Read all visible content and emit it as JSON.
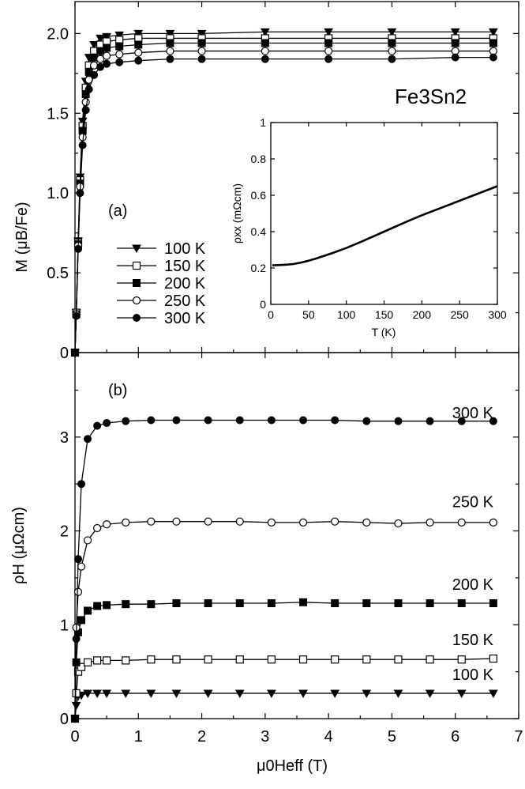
{
  "chart_data": [
    {
      "id": "a",
      "panel_label": "(a)",
      "type": "line",
      "ylabel": "M (μB/Fe)",
      "xlim": [
        0,
        7
      ],
      "ylim": [
        0,
        2.2
      ],
      "yticks": [
        "0",
        "0.5",
        "1.0",
        "1.5",
        "2.0"
      ],
      "annotation": "Fe3Sn2",
      "legend_position": "middle-left",
      "series": [
        {
          "name": "100 K",
          "marker": "triangle-down",
          "values": [
            [
              0,
              0
            ],
            [
              0.02,
              0.25
            ],
            [
              0.05,
              0.7
            ],
            [
              0.08,
              1.1
            ],
            [
              0.12,
              1.45
            ],
            [
              0.17,
              1.7
            ],
            [
              0.22,
              1.85
            ],
            [
              0.3,
              1.93
            ],
            [
              0.4,
              1.97
            ],
            [
              0.5,
              1.98
            ],
            [
              0.7,
              1.99
            ],
            [
              1.0,
              2.0
            ],
            [
              1.5,
              2.0
            ],
            [
              2.0,
              2.0
            ],
            [
              3.0,
              2.01
            ],
            [
              4.0,
              2.01
            ],
            [
              5.0,
              2.01
            ],
            [
              6.0,
              2.01
            ],
            [
              6.6,
              2.01
            ]
          ]
        },
        {
          "name": "150 K",
          "marker": "square-open",
          "values": [
            [
              0,
              0
            ],
            [
              0.02,
              0.25
            ],
            [
              0.05,
              0.69
            ],
            [
              0.08,
              1.08
            ],
            [
              0.12,
              1.42
            ],
            [
              0.17,
              1.66
            ],
            [
              0.22,
              1.8
            ],
            [
              0.3,
              1.89
            ],
            [
              0.4,
              1.93
            ],
            [
              0.5,
              1.95
            ],
            [
              0.7,
              1.96
            ],
            [
              1.0,
              1.97
            ],
            [
              1.5,
              1.97
            ],
            [
              2.0,
              1.97
            ],
            [
              3.0,
              1.97
            ],
            [
              4.0,
              1.97
            ],
            [
              5.0,
              1.97
            ],
            [
              6.0,
              1.97
            ],
            [
              6.6,
              1.97
            ]
          ]
        },
        {
          "name": "200 K",
          "marker": "square-filled",
          "values": [
            [
              0,
              0
            ],
            [
              0.02,
              0.24
            ],
            [
              0.05,
              0.68
            ],
            [
              0.08,
              1.06
            ],
            [
              0.12,
              1.39
            ],
            [
              0.17,
              1.62
            ],
            [
              0.22,
              1.76
            ],
            [
              0.3,
              1.85
            ],
            [
              0.4,
              1.89
            ],
            [
              0.5,
              1.91
            ],
            [
              0.7,
              1.92
            ],
            [
              1.0,
              1.93
            ],
            [
              1.5,
              1.94
            ],
            [
              2.0,
              1.94
            ],
            [
              3.0,
              1.94
            ],
            [
              4.0,
              1.94
            ],
            [
              5.0,
              1.94
            ],
            [
              6.0,
              1.94
            ],
            [
              6.6,
              1.94
            ]
          ]
        },
        {
          "name": "250 K",
          "marker": "circle-open",
          "values": [
            [
              0,
              0
            ],
            [
              0.02,
              0.24
            ],
            [
              0.05,
              0.67
            ],
            [
              0.08,
              1.04
            ],
            [
              0.12,
              1.35
            ],
            [
              0.17,
              1.57
            ],
            [
              0.22,
              1.71
            ],
            [
              0.3,
              1.8
            ],
            [
              0.4,
              1.84
            ],
            [
              0.5,
              1.86
            ],
            [
              0.7,
              1.87
            ],
            [
              1.0,
              1.88
            ],
            [
              1.5,
              1.89
            ],
            [
              2.0,
              1.89
            ],
            [
              3.0,
              1.89
            ],
            [
              4.0,
              1.89
            ],
            [
              5.0,
              1.89
            ],
            [
              6.0,
              1.89
            ],
            [
              6.6,
              1.89
            ]
          ]
        },
        {
          "name": "300 K",
          "marker": "circle-filled",
          "values": [
            [
              0,
              0
            ],
            [
              0.02,
              0.23
            ],
            [
              0.05,
              0.65
            ],
            [
              0.08,
              1.0
            ],
            [
              0.12,
              1.3
            ],
            [
              0.17,
              1.52
            ],
            [
              0.22,
              1.65
            ],
            [
              0.3,
              1.74
            ],
            [
              0.4,
              1.79
            ],
            [
              0.5,
              1.81
            ],
            [
              0.7,
              1.82
            ],
            [
              1.0,
              1.83
            ],
            [
              1.5,
              1.84
            ],
            [
              2.0,
              1.84
            ],
            [
              3.0,
              1.84
            ],
            [
              4.0,
              1.84
            ],
            [
              5.0,
              1.84
            ],
            [
              6.0,
              1.85
            ],
            [
              6.6,
              1.85
            ]
          ]
        }
      ],
      "inset": {
        "type": "line",
        "xlabel": "T (K)",
        "ylabel": "ρxx (mΩcm)",
        "xlim": [
          0,
          300
        ],
        "ylim": [
          0,
          1.0
        ],
        "xticks": [
          "0",
          "50",
          "100",
          "150",
          "200",
          "250",
          "300"
        ],
        "yticks": [
          "0",
          "0.2",
          "0.4",
          "0.6",
          "0.8",
          "1"
        ],
        "x": [
          2,
          10,
          20,
          30,
          40,
          50,
          60,
          80,
          100,
          120,
          150,
          180,
          200,
          250,
          300
        ],
        "y": [
          0.215,
          0.216,
          0.218,
          0.222,
          0.23,
          0.24,
          0.252,
          0.28,
          0.31,
          0.345,
          0.4,
          0.455,
          0.49,
          0.57,
          0.65
        ]
      }
    },
    {
      "id": "b",
      "panel_label": "(b)",
      "type": "line",
      "ylabel": "ρH (μΩcm)",
      "xlabel": "μ0Heff (T)",
      "xlim": [
        0,
        7
      ],
      "ylim": [
        0,
        3.9
      ],
      "xticks": [
        "0",
        "1",
        "2",
        "3",
        "4",
        "5",
        "6",
        "7"
      ],
      "yticks": [
        "0",
        "1",
        "2",
        "3"
      ],
      "series": [
        {
          "name": "100 K",
          "marker": "triangle-down",
          "values": [
            [
              0,
              0
            ],
            [
              0.02,
              0.14
            ],
            [
              0.05,
              0.24
            ],
            [
              0.1,
              0.25
            ],
            [
              0.2,
              0.27
            ],
            [
              0.35,
              0.27
            ],
            [
              0.5,
              0.27
            ],
            [
              0.8,
              0.27
            ],
            [
              1.2,
              0.27
            ],
            [
              1.6,
              0.27
            ],
            [
              2.1,
              0.27
            ],
            [
              2.6,
              0.27
            ],
            [
              3.1,
              0.27
            ],
            [
              3.6,
              0.27
            ],
            [
              4.1,
              0.27
            ],
            [
              4.6,
              0.27
            ],
            [
              5.1,
              0.27
            ],
            [
              5.6,
              0.27
            ],
            [
              6.1,
              0.27
            ],
            [
              6.6,
              0.27
            ]
          ]
        },
        {
          "name": "150 K",
          "marker": "square-open",
          "values": [
            [
              0,
              0
            ],
            [
              0.02,
              0.27
            ],
            [
              0.05,
              0.5
            ],
            [
              0.1,
              0.55
            ],
            [
              0.2,
              0.6
            ],
            [
              0.35,
              0.62
            ],
            [
              0.5,
              0.62
            ],
            [
              0.8,
              0.62
            ],
            [
              1.2,
              0.63
            ],
            [
              1.6,
              0.63
            ],
            [
              2.1,
              0.63
            ],
            [
              2.6,
              0.63
            ],
            [
              3.1,
              0.63
            ],
            [
              3.6,
              0.63
            ],
            [
              4.1,
              0.63
            ],
            [
              4.6,
              0.63
            ],
            [
              5.1,
              0.63
            ],
            [
              5.6,
              0.63
            ],
            [
              6.1,
              0.63
            ],
            [
              6.6,
              0.64
            ]
          ]
        },
        {
          "name": "200 K",
          "marker": "square-filled",
          "values": [
            [
              0,
              0
            ],
            [
              0.02,
              0.6
            ],
            [
              0.05,
              0.92
            ],
            [
              0.1,
              1.05
            ],
            [
              0.2,
              1.15
            ],
            [
              0.35,
              1.2
            ],
            [
              0.5,
              1.21
            ],
            [
              0.8,
              1.22
            ],
            [
              1.2,
              1.22
            ],
            [
              1.6,
              1.23
            ],
            [
              2.1,
              1.23
            ],
            [
              2.6,
              1.23
            ],
            [
              3.1,
              1.23
            ],
            [
              3.6,
              1.24
            ],
            [
              4.1,
              1.23
            ],
            [
              4.6,
              1.23
            ],
            [
              5.1,
              1.23
            ],
            [
              5.6,
              1.23
            ],
            [
              6.1,
              1.23
            ],
            [
              6.6,
              1.23
            ]
          ]
        },
        {
          "name": "250 K",
          "marker": "circle-open",
          "values": [
            [
              0,
              0
            ],
            [
              0.02,
              0.97
            ],
            [
              0.05,
              1.35
            ],
            [
              0.1,
              1.62
            ],
            [
              0.2,
              1.9
            ],
            [
              0.35,
              2.03
            ],
            [
              0.5,
              2.07
            ],
            [
              0.8,
              2.09
            ],
            [
              1.2,
              2.1
            ],
            [
              1.6,
              2.1
            ],
            [
              2.1,
              2.1
            ],
            [
              2.6,
              2.1
            ],
            [
              3.1,
              2.09
            ],
            [
              3.6,
              2.09
            ],
            [
              4.1,
              2.1
            ],
            [
              4.6,
              2.09
            ],
            [
              5.1,
              2.08
            ],
            [
              5.6,
              2.09
            ],
            [
              6.1,
              2.09
            ],
            [
              6.6,
              2.09
            ]
          ]
        },
        {
          "name": "300 K",
          "marker": "circle-filled",
          "values": [
            [
              0,
              0
            ],
            [
              0.02,
              0.85
            ],
            [
              0.05,
              1.7
            ],
            [
              0.1,
              2.5
            ],
            [
              0.2,
              2.98
            ],
            [
              0.35,
              3.12
            ],
            [
              0.5,
              3.15
            ],
            [
              0.8,
              3.17
            ],
            [
              1.2,
              3.18
            ],
            [
              1.6,
              3.18
            ],
            [
              2.1,
              3.18
            ],
            [
              2.6,
              3.18
            ],
            [
              3.1,
              3.18
            ],
            [
              3.6,
              3.18
            ],
            [
              4.1,
              3.18
            ],
            [
              4.6,
              3.17
            ],
            [
              5.1,
              3.17
            ],
            [
              5.6,
              3.17
            ],
            [
              6.1,
              3.17
            ],
            [
              6.6,
              3.17
            ]
          ]
        }
      ],
      "series_labels": [
        "300 K",
        "250 K",
        "200 K",
        "150 K",
        "100 K"
      ]
    }
  ]
}
